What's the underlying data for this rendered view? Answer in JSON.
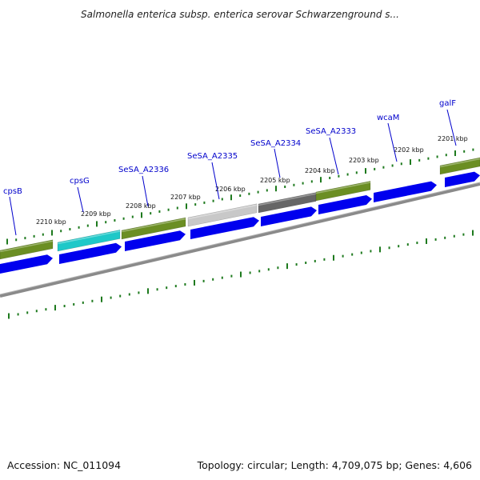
{
  "title": "Salmonella enterica subsp. enterica serovar Schwarzenground s...",
  "footer": {
    "accession": "Accession: NC_011094",
    "topology": "Topology: circular; Length: 4,709,075 bp; Genes: 4,606"
  },
  "colors": {
    "gene_label": "#0000cc",
    "tick": "#1e7a1e",
    "forward_arrow": "#0000ee",
    "backbone": "#808080",
    "olive": "#6b8e23",
    "cyan": "#1fc8c8",
    "light_gray": "#c8c8c8",
    "dark_gray": "#666666"
  },
  "genes": [
    {
      "label": "cpsB",
      "color": "olive"
    },
    {
      "label": "cpsG",
      "color": "cyan"
    },
    {
      "label": "SeSA_A2336",
      "color": "olive"
    },
    {
      "label": "SeSA_A2335",
      "color": "light_gray"
    },
    {
      "label": "SeSA_A2334",
      "color": "dark_gray"
    },
    {
      "label": "SeSA_A2333",
      "color": "olive"
    },
    {
      "label": "wcaM",
      "color": ""
    },
    {
      "label": "galF",
      "color": "olive"
    }
  ],
  "scale_labels": [
    "2210 kbp",
    "2209 kbp",
    "2208 kbp",
    "2207 kbp",
    "2206 kbp",
    "2205 kbp",
    "2204 kbp",
    "2203 kbp",
    "2202 kbp",
    "2201 kbp"
  ]
}
